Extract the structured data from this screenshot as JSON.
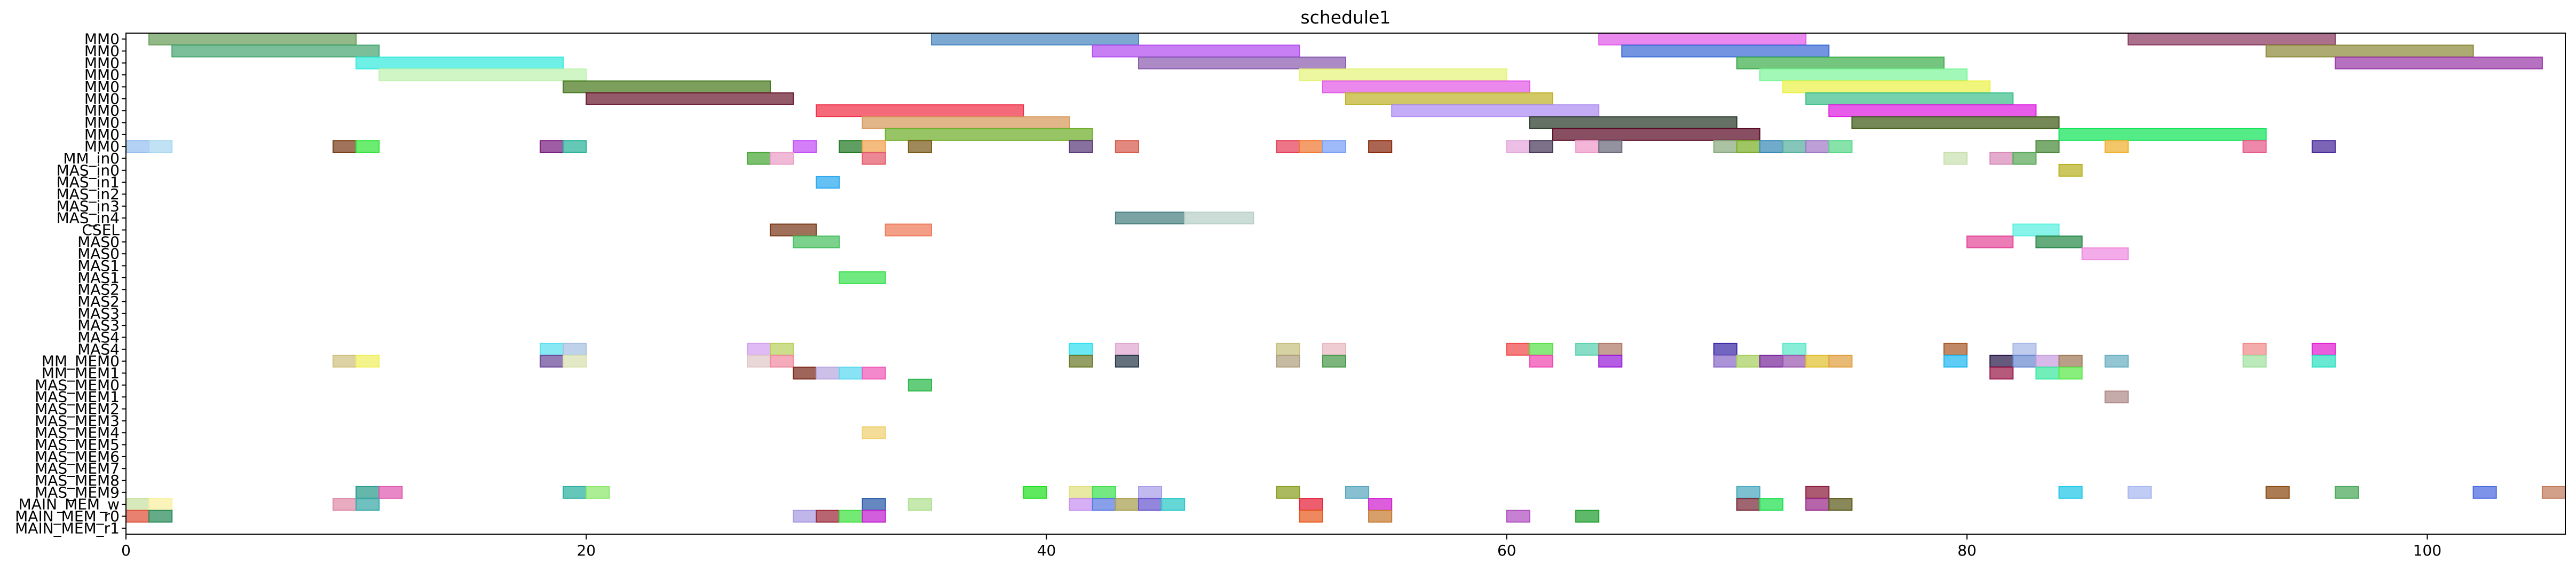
{
  "chart_data": {
    "type": "gantt",
    "title": "schedule1",
    "xlabel": "",
    "ylabel": "",
    "xlim": [
      0,
      106
    ],
    "xticks": [
      0,
      20,
      40,
      60,
      80,
      100
    ],
    "grid": false,
    "legend": "none",
    "lanes": [
      "MM0",
      "MM0",
      "MM0",
      "MM0",
      "MM0",
      "MM0",
      "MM0",
      "MM0",
      "MM0",
      "MM0",
      "MM_in0",
      "MAS_in0",
      "MAS_in1",
      "MAS_in2",
      "MAS_in3",
      "MAS_in4",
      "CSEL",
      "MAS0",
      "MAS0",
      "MAS1",
      "MAS1",
      "MAS2",
      "MAS2",
      "MAS3",
      "MAS3",
      "MAS4",
      "MAS4",
      "MM_MEM0",
      "MM_MEM1",
      "MAS_MEM0",
      "MAS_MEM1",
      "MAS_MEM2",
      "MAS_MEM3",
      "MAS_MEM4",
      "MAS_MEM5",
      "MAS_MEM6",
      "MAS_MEM7",
      "MAS_MEM8",
      "MAS_MEM9",
      "MAIN_MEM_w",
      "MAIN_MEM_r0",
      "MAIN_MEM_r1"
    ],
    "tasks": [
      {
        "lane": 0,
        "start": 1,
        "end": 10,
        "color": "#6a9e5a"
      },
      {
        "lane": 0,
        "start": 35,
        "end": 44,
        "color": "#4a86c0"
      },
      {
        "lane": 0,
        "start": 64,
        "end": 73,
        "color": "#e15ce9"
      },
      {
        "lane": 0,
        "start": 87,
        "end": 96,
        "color": "#8a3a60"
      },
      {
        "lane": 1,
        "start": 2,
        "end": 11,
        "color": "#46a672"
      },
      {
        "lane": 1,
        "start": 42,
        "end": 51,
        "color": "#b34ef0"
      },
      {
        "lane": 1,
        "start": 65,
        "end": 74,
        "color": "#3b6bd6"
      },
      {
        "lane": 1,
        "start": 93,
        "end": 102,
        "color": "#8d8a3a"
      },
      {
        "lane": 2,
        "start": 10,
        "end": 19,
        "color": "#38eadd"
      },
      {
        "lane": 2,
        "start": 44,
        "end": 53,
        "color": "#8a5db0"
      },
      {
        "lane": 2,
        "start": 70,
        "end": 79,
        "color": "#3fae4c"
      },
      {
        "lane": 2,
        "start": 96,
        "end": 105,
        "color": "#9a3aa8"
      },
      {
        "lane": 3,
        "start": 11,
        "end": 20,
        "color": "#bff3b0"
      },
      {
        "lane": 3,
        "start": 51,
        "end": 60,
        "color": "#e5f47a"
      },
      {
        "lane": 3,
        "start": 71,
        "end": 80,
        "color": "#7ef59a"
      },
      {
        "lane": 4,
        "start": 19,
        "end": 28,
        "color": "#4a7a20"
      },
      {
        "lane": 4,
        "start": 52,
        "end": 61,
        "color": "#e25ae8"
      },
      {
        "lane": 4,
        "start": 72,
        "end": 81,
        "color": "#eaf24a"
      },
      {
        "lane": 5,
        "start": 20,
        "end": 29,
        "color": "#6a1a30"
      },
      {
        "lane": 5,
        "start": 53,
        "end": 62,
        "color": "#c0b32a"
      },
      {
        "lane": 5,
        "start": 73,
        "end": 82,
        "color": "#3fbf8c"
      },
      {
        "lane": 6,
        "start": 30,
        "end": 39,
        "color": "#f03048"
      },
      {
        "lane": 6,
        "start": 55,
        "end": 64,
        "color": "#ad8ef2"
      },
      {
        "lane": 6,
        "start": 74,
        "end": 83,
        "color": "#de1ee0"
      },
      {
        "lane": 7,
        "start": 32,
        "end": 41,
        "color": "#d79a5c"
      },
      {
        "lane": 7,
        "start": 61,
        "end": 70,
        "color": "#2a3a2a"
      },
      {
        "lane": 7,
        "start": 75,
        "end": 84,
        "color": "#3e5a18"
      },
      {
        "lane": 8,
        "start": 33,
        "end": 42,
        "color": "#6fae2a"
      },
      {
        "lane": 8,
        "start": 62,
        "end": 71,
        "color": "#5a0a24"
      },
      {
        "lane": 8,
        "start": 84,
        "end": 93,
        "color": "#14e45a"
      },
      {
        "lane": 9,
        "start": 0,
        "end": 1,
        "color": "#96bff0"
      },
      {
        "lane": 9,
        "start": 1,
        "end": 2,
        "color": "#a9d7f0"
      },
      {
        "lane": 9,
        "start": 9,
        "end": 10,
        "color": "#7a3f1c"
      },
      {
        "lane": 9,
        "start": 10,
        "end": 11,
        "color": "#33e53a"
      },
      {
        "lane": 9,
        "start": 18,
        "end": 19,
        "color": "#7a2080"
      },
      {
        "lane": 9,
        "start": 19,
        "end": 20,
        "color": "#2ab29a"
      },
      {
        "lane": 9,
        "start": 29,
        "end": 30,
        "color": "#c34ef6"
      },
      {
        "lane": 9,
        "start": 31,
        "end": 32,
        "color": "#227a24"
      },
      {
        "lane": 9,
        "start": 32,
        "end": 33,
        "color": "#f0a24e"
      },
      {
        "lane": 9,
        "start": 34,
        "end": 35,
        "color": "#7a5a1a"
      },
      {
        "lane": 9,
        "start": 41,
        "end": 42,
        "color": "#5a3a78"
      },
      {
        "lane": 9,
        "start": 43,
        "end": 44,
        "color": "#d85a4c"
      },
      {
        "lane": 9,
        "start": 50,
        "end": 51,
        "color": "#e5405a"
      },
      {
        "lane": 9,
        "start": 51,
        "end": 52,
        "color": "#f07a32"
      },
      {
        "lane": 9,
        "start": 52,
        "end": 53,
        "color": "#7aa0f5"
      },
      {
        "lane": 9,
        "start": 54,
        "end": 55,
        "color": "#8a2a10"
      },
      {
        "lane": 9,
        "start": 60,
        "end": 61,
        "color": "#e4a8dc"
      },
      {
        "lane": 9,
        "start": 61,
        "end": 62,
        "color": "#4a3a5a"
      },
      {
        "lane": 9,
        "start": 63,
        "end": 64,
        "color": "#ee9acb"
      },
      {
        "lane": 9,
        "start": 64,
        "end": 65,
        "color": "#6a6a7a"
      },
      {
        "lane": 9,
        "start": 69,
        "end": 70,
        "color": "#8aaa80"
      },
      {
        "lane": 9,
        "start": 70,
        "end": 71,
        "color": "#7ab026"
      },
      {
        "lane": 9,
        "start": 71,
        "end": 72,
        "color": "#3a8ab8"
      },
      {
        "lane": 9,
        "start": 72,
        "end": 73,
        "color": "#58b0a0"
      },
      {
        "lane": 9,
        "start": 73,
        "end": 74,
        "color": "#a47ac8"
      },
      {
        "lane": 9,
        "start": 74,
        "end": 75,
        "color": "#5ad88a"
      },
      {
        "lane": 9,
        "start": 83,
        "end": 84,
        "color": "#4a8a3a"
      },
      {
        "lane": 9,
        "start": 86,
        "end": 87,
        "color": "#f0b030"
      },
      {
        "lane": 9,
        "start": 92,
        "end": 93,
        "color": "#e85a8a"
      },
      {
        "lane": 9,
        "start": 95,
        "end": 96,
        "color": "#4a2a9a"
      },
      {
        "lane": 10,
        "start": 27,
        "end": 28,
        "color": "#4aa838"
      },
      {
        "lane": 10,
        "start": 28,
        "end": 29,
        "color": "#eaa0c8"
      },
      {
        "lane": 10,
        "start": 32,
        "end": 33,
        "color": "#e35a6a"
      },
      {
        "lane": 10,
        "start": 79,
        "end": 80,
        "color": "#c8e0b0"
      },
      {
        "lane": 10,
        "start": 81,
        "end": 82,
        "color": "#d88ab8"
      },
      {
        "lane": 10,
        "start": 82,
        "end": 83,
        "color": "#5aa85a"
      },
      {
        "lane": 11,
        "start": 84,
        "end": 85,
        "color": "#b8b020"
      },
      {
        "lane": 12,
        "start": 30,
        "end": 31,
        "color": "#2aa8f0"
      },
      {
        "lane": 15,
        "start": 43,
        "end": 46,
        "color": "#4a8080"
      },
      {
        "lane": 15,
        "start": 46,
        "end": 49,
        "color": "#b8d0c8"
      },
      {
        "lane": 16,
        "start": 28,
        "end": 30,
        "color": "#7a3a1a"
      },
      {
        "lane": 16,
        "start": 33,
        "end": 35,
        "color": "#ee7a5a"
      },
      {
        "lane": 16,
        "start": 82,
        "end": 84,
        "color": "#5af0e0"
      },
      {
        "lane": 17,
        "start": 29,
        "end": 31,
        "color": "#4ac060"
      },
      {
        "lane": 17,
        "start": 80,
        "end": 82,
        "color": "#e34a9a"
      },
      {
        "lane": 17,
        "start": 83,
        "end": 85,
        "color": "#2a8a4a"
      },
      {
        "lane": 18,
        "start": 85,
        "end": 87,
        "color": "#ee8ae0"
      },
      {
        "lane": 20,
        "start": 31,
        "end": 33,
        "color": "#3ae050"
      },
      {
        "lane": 26,
        "start": 18,
        "end": 19,
        "color": "#5ae0f0"
      },
      {
        "lane": 26,
        "start": 19,
        "end": 20,
        "color": "#a8c0e0"
      },
      {
        "lane": 26,
        "start": 27,
        "end": 28,
        "color": "#d4a0f0"
      },
      {
        "lane": 26,
        "start": 28,
        "end": 29,
        "color": "#b8d060"
      },
      {
        "lane": 26,
        "start": 41,
        "end": 42,
        "color": "#30e0f0"
      },
      {
        "lane": 26,
        "start": 43,
        "end": 44,
        "color": "#e0a8d0"
      },
      {
        "lane": 26,
        "start": 50,
        "end": 51,
        "color": "#c8c080"
      },
      {
        "lane": 26,
        "start": 52,
        "end": 53,
        "color": "#e8b8c0"
      },
      {
        "lane": 26,
        "start": 60,
        "end": 61,
        "color": "#f04a4a"
      },
      {
        "lane": 26,
        "start": 61,
        "end": 62,
        "color": "#5ae04a"
      },
      {
        "lane": 26,
        "start": 63,
        "end": 64,
        "color": "#5ad0b0"
      },
      {
        "lane": 26,
        "start": 64,
        "end": 65,
        "color": "#b07a6a"
      },
      {
        "lane": 26,
        "start": 69,
        "end": 70,
        "color": "#3a2aa8"
      },
      {
        "lane": 26,
        "start": 72,
        "end": 73,
        "color": "#5ae8c8"
      },
      {
        "lane": 26,
        "start": 79,
        "end": 80,
        "color": "#a85a2a"
      },
      {
        "lane": 26,
        "start": 82,
        "end": 83,
        "color": "#a8b8e8"
      },
      {
        "lane": 26,
        "start": 92,
        "end": 93,
        "color": "#f08a8a"
      },
      {
        "lane": 26,
        "start": 95,
        "end": 96,
        "color": "#e020d0"
      },
      {
        "lane": 27,
        "start": 9,
        "end": 10,
        "color": "#d0c080"
      },
      {
        "lane": 27,
        "start": 10,
        "end": 11,
        "color": "#f0f060"
      },
      {
        "lane": 27,
        "start": 18,
        "end": 19,
        "color": "#6a4a9a"
      },
      {
        "lane": 27,
        "start": 19,
        "end": 20,
        "color": "#d8e0b0"
      },
      {
        "lane": 27,
        "start": 27,
        "end": 28,
        "color": "#e0c8c8"
      },
      {
        "lane": 27,
        "start": 28,
        "end": 29,
        "color": "#f08aa0"
      },
      {
        "lane": 27,
        "start": 41,
        "end": 42,
        "color": "#6a7a2a"
      },
      {
        "lane": 27,
        "start": 43,
        "end": 44,
        "color": "#2a3a4a"
      },
      {
        "lane": 27,
        "start": 50,
        "end": 51,
        "color": "#b0a080"
      },
      {
        "lane": 27,
        "start": 52,
        "end": 53,
        "color": "#4a9a4a"
      },
      {
        "lane": 27,
        "start": 61,
        "end": 62,
        "color": "#f04ab0"
      },
      {
        "lane": 27,
        "start": 64,
        "end": 65,
        "color": "#9a20d8"
      },
      {
        "lane": 27,
        "start": 69,
        "end": 70,
        "color": "#8a6ac8"
      },
      {
        "lane": 27,
        "start": 70,
        "end": 71,
        "color": "#a8d060"
      },
      {
        "lane": 27,
        "start": 71,
        "end": 72,
        "color": "#7a2a9a"
      },
      {
        "lane": 27,
        "start": 72,
        "end": 73,
        "color": "#9a5ab0"
      },
      {
        "lane": 27,
        "start": 73,
        "end": 74,
        "color": "#e0c030"
      },
      {
        "lane": 27,
        "start": 74,
        "end": 75,
        "color": "#e0a040"
      },
      {
        "lane": 27,
        "start": 79,
        "end": 80,
        "color": "#20b8f0"
      },
      {
        "lane": 27,
        "start": 81,
        "end": 82,
        "color": "#2a1a4a"
      },
      {
        "lane": 27,
        "start": 82,
        "end": 83,
        "color": "#6a8ad0"
      },
      {
        "lane": 27,
        "start": 83,
        "end": 84,
        "color": "#c8a0e0"
      },
      {
        "lane": 27,
        "start": 84,
        "end": 85,
        "color": "#a07a5a"
      },
      {
        "lane": 27,
        "start": 86,
        "end": 87,
        "color": "#6ab0c0"
      },
      {
        "lane": 27,
        "start": 92,
        "end": 93,
        "color": "#a0e0a0"
      },
      {
        "lane": 27,
        "start": 95,
        "end": 96,
        "color": "#30e0c0"
      },
      {
        "lane": 28,
        "start": 29,
        "end": 30,
        "color": "#7a2a1a"
      },
      {
        "lane": 28,
        "start": 30,
        "end": 31,
        "color": "#b8a8e0"
      },
      {
        "lane": 28,
        "start": 31,
        "end": 32,
        "color": "#5ad8f0"
      },
      {
        "lane": 28,
        "start": 32,
        "end": 33,
        "color": "#f05ab8"
      },
      {
        "lane": 28,
        "start": 81,
        "end": 82,
        "color": "#9a1a4a"
      },
      {
        "lane": 28,
        "start": 83,
        "end": 84,
        "color": "#3ae8a0"
      },
      {
        "lane": 28,
        "start": 84,
        "end": 85,
        "color": "#5ae84a"
      },
      {
        "lane": 29,
        "start": 34,
        "end": 35,
        "color": "#2ab84a"
      },
      {
        "lane": 30,
        "start": 86,
        "end": 87,
        "color": "#b08a8a"
      },
      {
        "lane": 33,
        "start": 32,
        "end": 33,
        "color": "#f0d070"
      },
      {
        "lane": 38,
        "start": 10,
        "end": 11,
        "color": "#2a9a8a"
      },
      {
        "lane": 38,
        "start": 11,
        "end": 12,
        "color": "#e05ab0"
      },
      {
        "lane": 38,
        "start": 19,
        "end": 20,
        "color": "#2ab0a0"
      },
      {
        "lane": 38,
        "start": 20,
        "end": 21,
        "color": "#8ae86a"
      },
      {
        "lane": 38,
        "start": 39,
        "end": 40,
        "color": "#20e020"
      },
      {
        "lane": 38,
        "start": 41,
        "end": 42,
        "color": "#e0e080"
      },
      {
        "lane": 38,
        "start": 42,
        "end": 43,
        "color": "#40e050"
      },
      {
        "lane": 38,
        "start": 44,
        "end": 45,
        "color": "#a8a0e8"
      },
      {
        "lane": 38,
        "start": 50,
        "end": 51,
        "color": "#8aa020"
      },
      {
        "lane": 38,
        "start": 53,
        "end": 54,
        "color": "#5aa8c0"
      },
      {
        "lane": 38,
        "start": 70,
        "end": 71,
        "color": "#4aa8c0"
      },
      {
        "lane": 38,
        "start": 73,
        "end": 74,
        "color": "#8a1a3a"
      },
      {
        "lane": 38,
        "start": 84,
        "end": 85,
        "color": "#20c8e8"
      },
      {
        "lane": 38,
        "start": 87,
        "end": 88,
        "color": "#a8b8f0"
      },
      {
        "lane": 38,
        "start": 93,
        "end": 94,
        "color": "#8a4a10"
      },
      {
        "lane": 38,
        "start": 96,
        "end": 97,
        "color": "#4aa85a"
      },
      {
        "lane": 38,
        "start": 102,
        "end": 103,
        "color": "#4a6ae0"
      },
      {
        "lane": 38,
        "start": 105,
        "end": 106,
        "color": "#c07a5a"
      },
      {
        "lane": 39,
        "start": 0,
        "end": 1,
        "color": "#c8e0a0"
      },
      {
        "lane": 39,
        "start": 1,
        "end": 2,
        "color": "#f8f0a0"
      },
      {
        "lane": 39,
        "start": 9,
        "end": 10,
        "color": "#e08aa8"
      },
      {
        "lane": 39,
        "start": 10,
        "end": 11,
        "color": "#3aa8a8"
      },
      {
        "lane": 39,
        "start": 32,
        "end": 33,
        "color": "#2a5aa8"
      },
      {
        "lane": 39,
        "start": 34,
        "end": 35,
        "color": "#b0e090"
      },
      {
        "lane": 39,
        "start": 41,
        "end": 42,
        "color": "#c890f0"
      },
      {
        "lane": 39,
        "start": 42,
        "end": 43,
        "color": "#5a7ae0"
      },
      {
        "lane": 39,
        "start": 43,
        "end": 44,
        "color": "#a8a050"
      },
      {
        "lane": 39,
        "start": 44,
        "end": 45,
        "color": "#6a58d0"
      },
      {
        "lane": 39,
        "start": 45,
        "end": 46,
        "color": "#2ac8c8"
      },
      {
        "lane": 39,
        "start": 51,
        "end": 52,
        "color": "#e8203a"
      },
      {
        "lane": 39,
        "start": 54,
        "end": 55,
        "color": "#d020d0"
      },
      {
        "lane": 39,
        "start": 70,
        "end": 71,
        "color": "#7a2a3a"
      },
      {
        "lane": 39,
        "start": 71,
        "end": 72,
        "color": "#20e050"
      },
      {
        "lane": 39,
        "start": 73,
        "end": 74,
        "color": "#9a2a8a"
      },
      {
        "lane": 39,
        "start": 74,
        "end": 75,
        "color": "#5a5a1a"
      },
      {
        "lane": 40,
        "start": 0,
        "end": 1,
        "color": "#e0503a"
      },
      {
        "lane": 40,
        "start": 1,
        "end": 2,
        "color": "#2a8a5a"
      },
      {
        "lane": 40,
        "start": 29,
        "end": 30,
        "color": "#a89ae0"
      },
      {
        "lane": 40,
        "start": 30,
        "end": 31,
        "color": "#9a2a3a"
      },
      {
        "lane": 40,
        "start": 31,
        "end": 32,
        "color": "#40e040"
      },
      {
        "lane": 40,
        "start": 32,
        "end": 33,
        "color": "#c020d0"
      },
      {
        "lane": 40,
        "start": 51,
        "end": 52,
        "color": "#e85a20"
      },
      {
        "lane": 40,
        "start": 54,
        "end": 55,
        "color": "#c87a30"
      },
      {
        "lane": 40,
        "start": 60,
        "end": 61,
        "color": "#b050c0"
      },
      {
        "lane": 40,
        "start": 63,
        "end": 64,
        "color": "#20a030"
      }
    ]
  }
}
